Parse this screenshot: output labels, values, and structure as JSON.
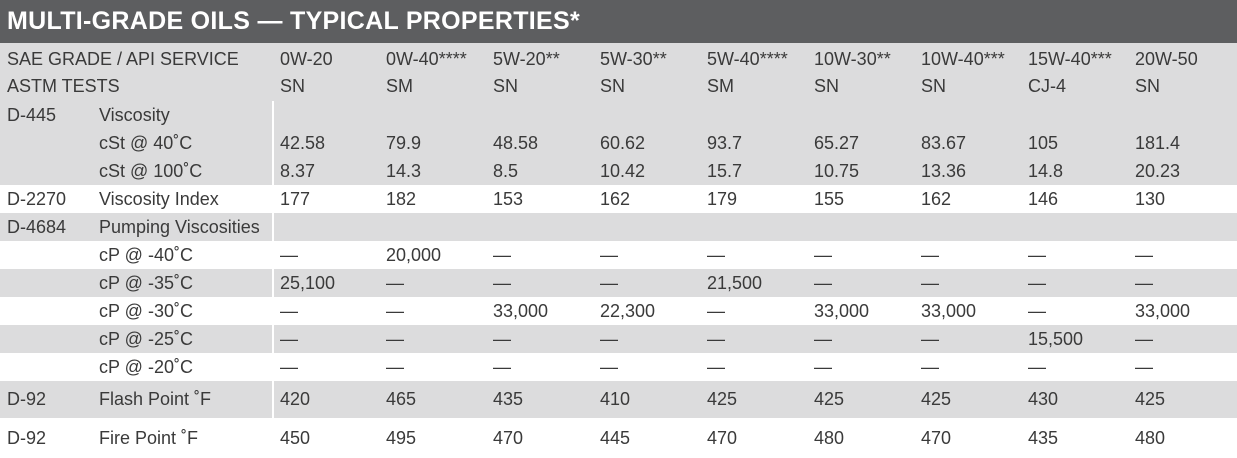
{
  "title": "MULTI-GRADE OILS — TYPICAL PROPERTIES*",
  "header": {
    "label_line1": "SAE GRADE / API SERVICE",
    "label_line2": "ASTM TESTS",
    "grades": [
      {
        "grade": "0W-20",
        "service": "SN"
      },
      {
        "grade": "0W-40****",
        "service": "SM"
      },
      {
        "grade": "5W-20**",
        "service": "SN"
      },
      {
        "grade": "5W-30**",
        "service": "SN"
      },
      {
        "grade": "5W-40****",
        "service": "SM"
      },
      {
        "grade": "10W-30**",
        "service": "SN"
      },
      {
        "grade": "10W-40***",
        "service": "SN"
      },
      {
        "grade": "15W-40***",
        "service": "CJ-4"
      },
      {
        "grade": "20W-50",
        "service": "SN"
      }
    ]
  },
  "rows": [
    {
      "test": "D-445",
      "property": "Viscosity",
      "values": []
    },
    {
      "test": "",
      "property": "cSt @ 40˚C",
      "values": [
        "42.58",
        "79.9",
        "48.58",
        "60.62",
        "93.7",
        "65.27",
        "83.67",
        "105",
        "181.4"
      ]
    },
    {
      "test": "",
      "property": "cSt @ 100˚C",
      "values": [
        "8.37",
        "14.3",
        "8.5",
        "10.42",
        "15.7",
        "10.75",
        "13.36",
        "14.8",
        "20.23"
      ]
    },
    {
      "test": "D-2270",
      "property": "Viscosity Index",
      "values": [
        "177",
        "182",
        "153",
        "162",
        "179",
        "155",
        "162",
        "146",
        "130"
      ]
    },
    {
      "test": "D-4684",
      "property": "Pumping Viscosities",
      "values": []
    },
    {
      "test": "",
      "property": "cP @ -40˚C",
      "values": [
        "—",
        "20,000",
        "—",
        "—",
        "—",
        "—",
        "—",
        "—",
        "—"
      ]
    },
    {
      "test": "",
      "property": "cP @ -35˚C",
      "values": [
        "25,100",
        "—",
        "—",
        "—",
        "21,500",
        "—",
        "—",
        "—",
        "—"
      ]
    },
    {
      "test": "",
      "property": "cP @ -30˚C",
      "values": [
        "—",
        "—",
        "33,000",
        "22,300",
        "—",
        "33,000",
        "33,000",
        "—",
        "33,000"
      ]
    },
    {
      "test": "",
      "property": "cP @ -25˚C",
      "values": [
        "—",
        "—",
        "—",
        "—",
        "—",
        "—",
        "—",
        "15,500",
        "—"
      ]
    },
    {
      "test": "",
      "property": "cP @ -20˚C",
      "values": [
        "—",
        "—",
        "—",
        "—",
        "—",
        "—",
        "—",
        "—",
        "—"
      ]
    },
    {
      "test": "D-92",
      "property": "Flash Point ˚F",
      "values": [
        "420",
        "465",
        "435",
        "410",
        "425",
        "425",
        "425",
        "430",
        "425"
      ]
    },
    {
      "test": "D-92",
      "property": "Fire Point ˚F",
      "values": [
        "450",
        "495",
        "470",
        "445",
        "470",
        "480",
        "470",
        "435",
        "480"
      ]
    }
  ]
}
